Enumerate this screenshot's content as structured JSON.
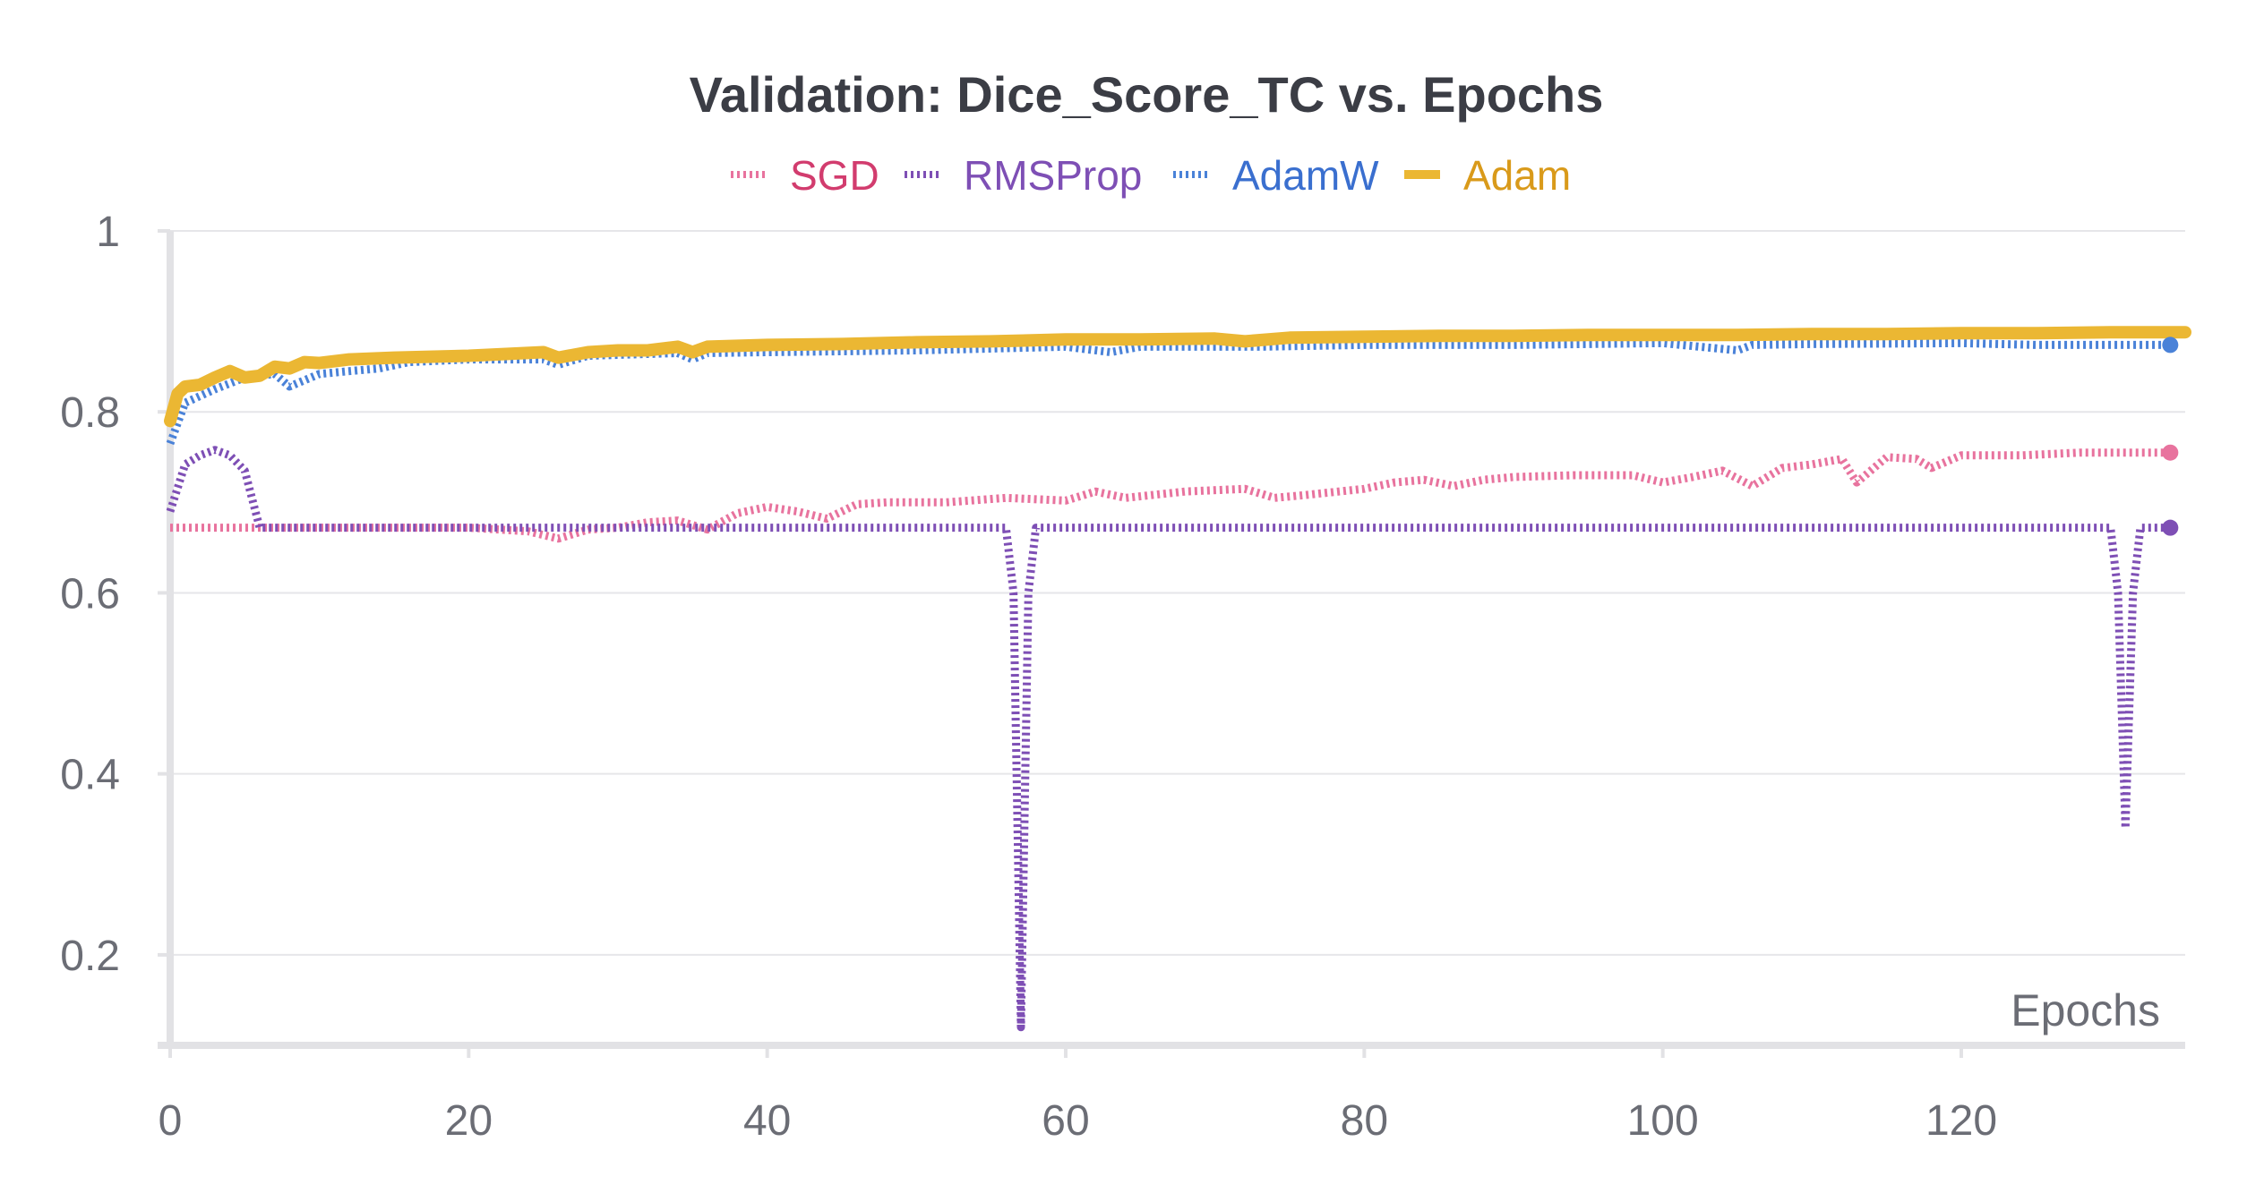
{
  "chart_data": {
    "type": "line",
    "title": "Validation: Dice_Score_TC vs. Epochs",
    "xlabel": "Epochs",
    "ylabel": "",
    "xlim": [
      0,
      135
    ],
    "ylim": [
      0.1,
      1.0
    ],
    "x_ticks": [
      0,
      20,
      40,
      60,
      80,
      100,
      120
    ],
    "y_ticks": [
      0.2,
      0.4,
      0.6,
      0.8,
      1
    ],
    "y_tick_labels": [
      "0.2",
      "0.4",
      "0.6",
      "0.8",
      "1"
    ],
    "x_tick_labels": [
      "0",
      "20",
      "40",
      "60",
      "80",
      "100",
      "120"
    ],
    "grid": true,
    "legend_position": "top-center",
    "series": [
      {
        "name": "SGD",
        "color": "#e8739e",
        "label_color": "#d23c6e",
        "style": "dotted",
        "keypoints": [
          [
            0,
            0.672
          ],
          [
            10,
            0.672
          ],
          [
            20,
            0.672
          ],
          [
            24,
            0.668
          ],
          [
            26,
            0.66
          ],
          [
            28,
            0.67
          ],
          [
            30,
            0.672
          ],
          [
            32,
            0.678
          ],
          [
            34,
            0.68
          ],
          [
            36,
            0.67
          ],
          [
            38,
            0.688
          ],
          [
            40,
            0.695
          ],
          [
            42,
            0.69
          ],
          [
            44,
            0.682
          ],
          [
            46,
            0.698
          ],
          [
            48,
            0.7
          ],
          [
            52,
            0.7
          ],
          [
            56,
            0.705
          ],
          [
            60,
            0.702
          ],
          [
            62,
            0.712
          ],
          [
            64,
            0.705
          ],
          [
            68,
            0.712
          ],
          [
            72,
            0.715
          ],
          [
            74,
            0.705
          ],
          [
            76,
            0.708
          ],
          [
            80,
            0.715
          ],
          [
            82,
            0.722
          ],
          [
            84,
            0.725
          ],
          [
            86,
            0.718
          ],
          [
            88,
            0.725
          ],
          [
            90,
            0.728
          ],
          [
            94,
            0.73
          ],
          [
            98,
            0.73
          ],
          [
            100,
            0.722
          ],
          [
            102,
            0.728
          ],
          [
            104,
            0.735
          ],
          [
            106,
            0.718
          ],
          [
            108,
            0.738
          ],
          [
            110,
            0.742
          ],
          [
            112,
            0.748
          ],
          [
            113,
            0.722
          ],
          [
            115,
            0.75
          ],
          [
            117,
            0.748
          ],
          [
            118,
            0.738
          ],
          [
            120,
            0.752
          ],
          [
            124,
            0.752
          ],
          [
            128,
            0.755
          ],
          [
            132,
            0.755
          ],
          [
            134,
            0.755
          ]
        ],
        "end_value": 0.755
      },
      {
        "name": "RMSProp",
        "color": "#7e4fb5",
        "label_color": "#7e4fb5",
        "style": "dotted",
        "keypoints": [
          [
            0,
            0.69
          ],
          [
            1,
            0.742
          ],
          [
            2,
            0.752
          ],
          [
            3,
            0.758
          ],
          [
            4,
            0.752
          ],
          [
            5,
            0.735
          ],
          [
            6,
            0.672
          ],
          [
            56,
            0.672
          ],
          [
            56.5,
            0.6
          ],
          [
            57,
            0.12
          ],
          [
            57.5,
            0.6
          ],
          [
            58,
            0.672
          ],
          [
            130,
            0.672
          ],
          [
            130.5,
            0.6
          ],
          [
            131,
            0.34
          ],
          [
            131.5,
            0.6
          ],
          [
            132,
            0.672
          ],
          [
            134,
            0.672
          ]
        ],
        "end_value": 0.672
      },
      {
        "name": "AdamW",
        "color": "#4a82d8",
        "label_color": "#3a6fcf",
        "style": "dotted",
        "keypoints": [
          [
            0,
            0.765
          ],
          [
            1,
            0.81
          ],
          [
            3,
            0.825
          ],
          [
            5,
            0.838
          ],
          [
            7,
            0.842
          ],
          [
            8,
            0.828
          ],
          [
            10,
            0.842
          ],
          [
            12,
            0.845
          ],
          [
            14,
            0.848
          ],
          [
            16,
            0.855
          ],
          [
            20,
            0.858
          ],
          [
            25,
            0.858
          ],
          [
            26,
            0.852
          ],
          [
            28,
            0.862
          ],
          [
            34,
            0.865
          ],
          [
            35,
            0.858
          ],
          [
            36,
            0.865
          ],
          [
            40,
            0.866
          ],
          [
            50,
            0.868
          ],
          [
            60,
            0.872
          ],
          [
            63,
            0.866
          ],
          [
            65,
            0.872
          ],
          [
            73,
            0.872
          ],
          [
            80,
            0.874
          ],
          [
            90,
            0.874
          ],
          [
            100,
            0.876
          ],
          [
            105,
            0.868
          ],
          [
            106,
            0.874
          ],
          [
            110,
            0.875
          ],
          [
            120,
            0.876
          ],
          [
            125,
            0.874
          ],
          [
            130,
            0.874
          ],
          [
            134,
            0.874
          ]
        ],
        "end_value": 0.874
      },
      {
        "name": "Adam",
        "color": "#ebb733",
        "label_color": "#d99a1a",
        "style": "solid",
        "keypoints": [
          [
            0,
            0.79
          ],
          [
            0.5,
            0.82
          ],
          [
            1,
            0.828
          ],
          [
            2,
            0.83
          ],
          [
            3,
            0.838
          ],
          [
            4,
            0.845
          ],
          [
            5,
            0.838
          ],
          [
            6,
            0.84
          ],
          [
            7,
            0.85
          ],
          [
            8,
            0.848
          ],
          [
            9,
            0.855
          ],
          [
            10,
            0.854
          ],
          [
            12,
            0.858
          ],
          [
            15,
            0.86
          ],
          [
            20,
            0.862
          ],
          [
            25,
            0.866
          ],
          [
            26,
            0.86
          ],
          [
            28,
            0.866
          ],
          [
            30,
            0.868
          ],
          [
            32,
            0.868
          ],
          [
            34,
            0.872
          ],
          [
            35,
            0.866
          ],
          [
            36,
            0.872
          ],
          [
            40,
            0.874
          ],
          [
            45,
            0.875
          ],
          [
            50,
            0.877
          ],
          [
            55,
            0.878
          ],
          [
            60,
            0.88
          ],
          [
            65,
            0.88
          ],
          [
            70,
            0.881
          ],
          [
            72,
            0.878
          ],
          [
            75,
            0.882
          ],
          [
            80,
            0.883
          ],
          [
            85,
            0.884
          ],
          [
            90,
            0.884
          ],
          [
            95,
            0.885
          ],
          [
            100,
            0.885
          ],
          [
            105,
            0.885
          ],
          [
            110,
            0.886
          ],
          [
            115,
            0.886
          ],
          [
            120,
            0.887
          ],
          [
            125,
            0.887
          ],
          [
            130,
            0.888
          ],
          [
            135,
            0.888
          ]
        ],
        "end_value": 0.888
      }
    ]
  }
}
